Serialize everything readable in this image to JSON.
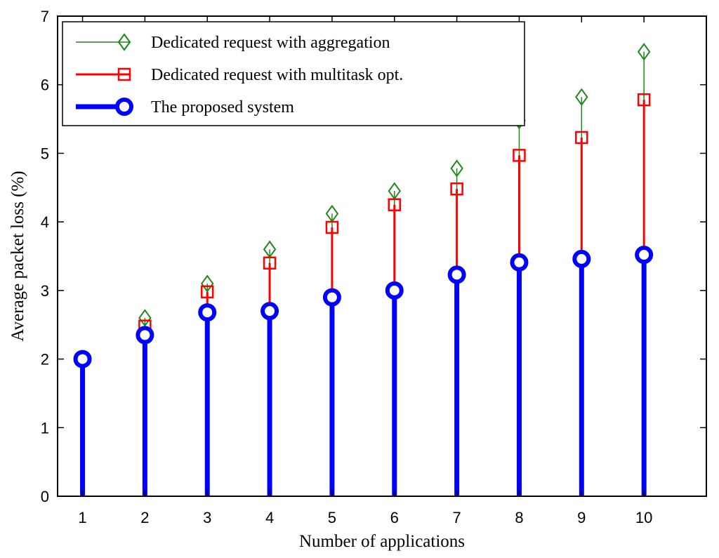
{
  "chart_data": {
    "type": "stem",
    "xlabel": "Number of applications",
    "ylabel": "Average packet loss (%)",
    "xlim": [
      0.6,
      11.0
    ],
    "ylim": [
      0,
      7
    ],
    "x": [
      1,
      2,
      3,
      4,
      5,
      6,
      7,
      8,
      9,
      10
    ],
    "x_ticks": [
      "1",
      "2",
      "3",
      "4",
      "5",
      "6",
      "7",
      "8",
      "9",
      "10"
    ],
    "y_ticks": [
      "0",
      "1",
      "2",
      "3",
      "4",
      "5",
      "6",
      "7"
    ],
    "grid": false,
    "legend_position": "top-left",
    "series": [
      {
        "name": "Dedicated request with aggregation",
        "color": "#1a8a1a",
        "marker": "diamond",
        "values": [
          2.0,
          2.6,
          3.1,
          3.6,
          4.12,
          4.45,
          4.78,
          5.48,
          5.82,
          6.48
        ]
      },
      {
        "name": "Dedicated request with multitask opt.",
        "color": "#ff0000",
        "marker": "square",
        "values": [
          2.0,
          2.48,
          2.98,
          3.4,
          3.92,
          4.25,
          4.48,
          4.97,
          5.23,
          5.78
        ]
      },
      {
        "name": "The proposed system",
        "color": "#0000ff",
        "marker": "circle",
        "values": [
          2.0,
          2.35,
          2.68,
          2.7,
          2.9,
          3.0,
          3.23,
          3.41,
          3.46,
          3.52
        ]
      }
    ]
  }
}
